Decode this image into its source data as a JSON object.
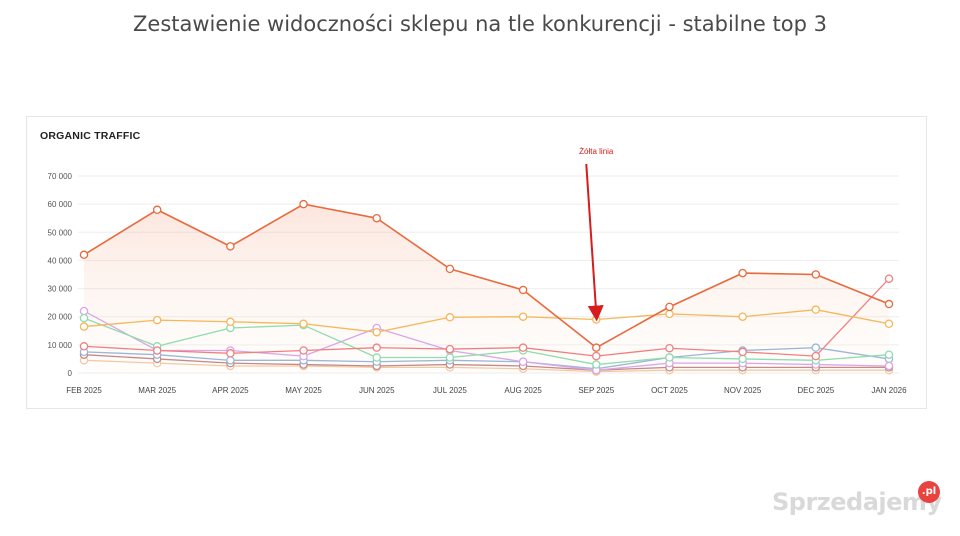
{
  "page": {
    "title": "Zestawienie widoczności sklepu na tle konkurencji - stabilne top 3"
  },
  "watermark": {
    "text": "Sprzedajemy",
    "badge": ".pl"
  },
  "chart_data": {
    "type": "line",
    "title": "ORGANIC TRAFFIC",
    "xlabel": "",
    "ylabel": "",
    "categories": [
      "FEB 2025",
      "MAR 2025",
      "APR 2025",
      "MAY 2025",
      "JUN 2025",
      "JUL 2025",
      "AUG 2025",
      "SEP 2025",
      "OCT 2025",
      "NOV 2025",
      "DEC 2025",
      "JAN 2026"
    ],
    "ylim": [
      0,
      70000
    ],
    "yticks": [
      0,
      10000,
      20000,
      30000,
      40000,
      50000,
      60000,
      70000
    ],
    "ytick_labels": [
      "0",
      "10 000",
      "20 000",
      "30 000",
      "40 000",
      "50 000",
      "60 000",
      "70 000"
    ],
    "grid": true,
    "series": [
      {
        "color": "#e8693c",
        "values": [
          42000,
          58000,
          45000,
          60000,
          55000,
          37000,
          29500,
          9000,
          23500,
          35500,
          35000,
          24500
        ]
      },
      {
        "color": "#f4b75a",
        "values": [
          16500,
          18800,
          18200,
          17500,
          14500,
          19800,
          20000,
          19000,
          21000,
          20000,
          22500,
          17500
        ]
      },
      {
        "color": "#f08080",
        "values": [
          9500,
          8000,
          7000,
          8000,
          9000,
          8500,
          9000,
          6000,
          8800,
          7500,
          6000,
          33500
        ]
      },
      {
        "color": "#8fdcae",
        "values": [
          19500,
          9500,
          16000,
          17000,
          5500,
          5500,
          8000,
          3000,
          5500,
          5000,
          4500,
          6500
        ]
      },
      {
        "color": "#d9a6e8",
        "values": [
          22000,
          8000,
          8000,
          6000,
          16000,
          8000,
          4000,
          1000,
          3500,
          3500,
          3000,
          2500
        ]
      },
      {
        "color": "#9cb6d6",
        "values": [
          7500,
          6500,
          4500,
          4500,
          4000,
          4500,
          4000,
          1500,
          5500,
          8000,
          9000,
          5000
        ]
      },
      {
        "color": "#c48a8a",
        "values": [
          6500,
          5000,
          3500,
          3000,
          2500,
          3000,
          2500,
          1000,
          2000,
          2000,
          2000,
          2000
        ]
      },
      {
        "color": "#f5c9a0",
        "values": [
          4500,
          3500,
          2500,
          2500,
          2000,
          2000,
          1500,
          500,
          1000,
          1000,
          1000,
          1000
        ]
      }
    ],
    "annotation": {
      "text": "Żółta linia",
      "color": "#d81b1b",
      "target_category": "SEP 2025",
      "target_value": 19000
    }
  }
}
